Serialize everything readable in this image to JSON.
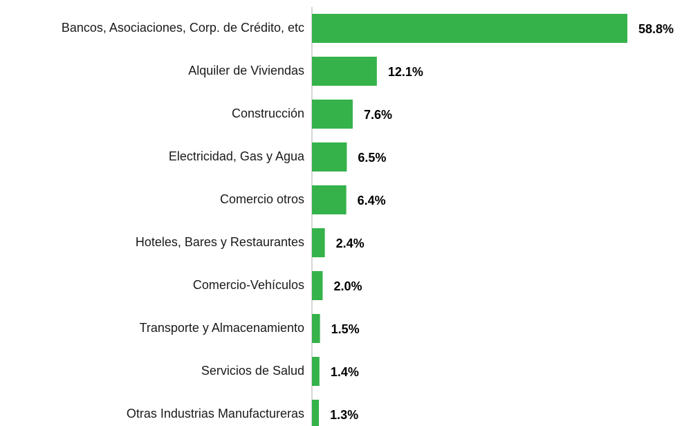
{
  "chart_data": {
    "type": "bar",
    "orientation": "horizontal",
    "color": "#35b24a",
    "categories": [
      "Bancos, Asociaciones, Corp. de Crédito, etc",
      "Alquiler de Viviendas",
      "Construcción",
      "Electricidad, Gas y Agua",
      "Comercio otros",
      "Hoteles, Bares y Restaurantes",
      "Comercio-Vehículos",
      "Transporte y Almacenamiento",
      "Servicios de Salud",
      "Otras Industrias Manufactureras"
    ],
    "values": [
      58.8,
      12.1,
      7.6,
      6.5,
      6.4,
      2.4,
      2.0,
      1.5,
      1.4,
      1.3
    ],
    "value_labels": [
      "58.8%",
      "12.1%",
      "7.6%",
      "6.5%",
      "6.4%",
      "2.4%",
      "2.0%",
      "1.5%",
      "1.4%",
      "1.3%"
    ]
  }
}
